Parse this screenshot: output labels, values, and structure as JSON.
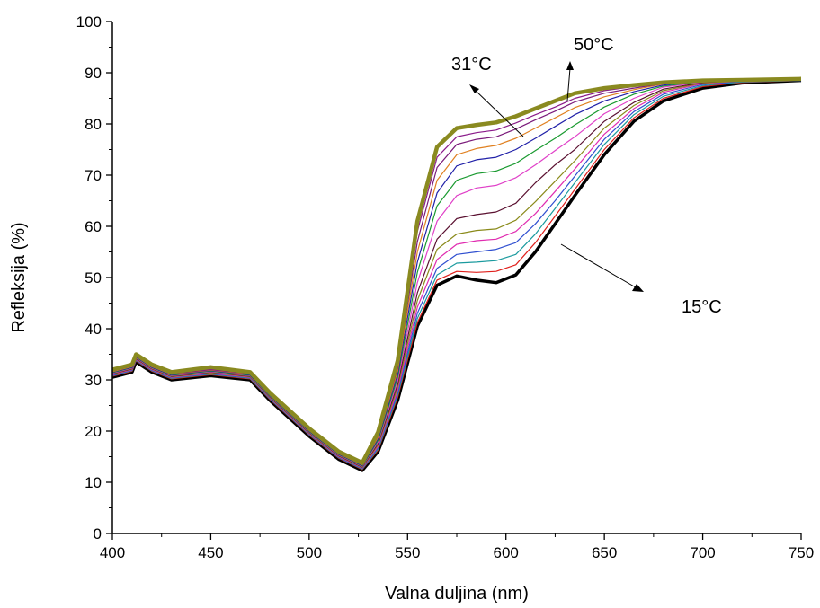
{
  "chart_data": {
    "type": "line",
    "title": "",
    "xlabel": "Valna duljina (nm)",
    "ylabel": "Refleksija (%)",
    "xlim": [
      400,
      750
    ],
    "ylim": [
      0,
      100
    ],
    "xticks": [
      400,
      450,
      500,
      550,
      600,
      650,
      700,
      750
    ],
    "yticks": [
      0,
      10,
      20,
      30,
      40,
      50,
      60,
      70,
      80,
      90,
      100
    ],
    "grid": false,
    "legend": "none",
    "x": [
      400,
      410,
      412,
      420,
      430,
      450,
      470,
      480,
      500,
      515,
      527,
      535,
      545,
      555,
      565,
      575,
      585,
      595,
      605,
      615,
      625,
      635,
      650,
      665,
      680,
      700,
      720,
      750
    ],
    "series": [
      {
        "color": "#000000",
        "values": [
          30.5,
          31.5,
          33.5,
          31.5,
          30.0,
          30.8,
          30.0,
          26.0,
          19.0,
          14.5,
          12.3,
          16.0,
          26.0,
          40.5,
          48.5,
          50.3,
          49.5,
          49.0,
          50.5,
          55.0,
          60.5,
          66.0,
          74.0,
          80.5,
          84.5,
          87.0,
          88.0,
          88.5
        ]
      },
      {
        "color": "#e0201c",
        "values": [
          30.7,
          31.7,
          33.7,
          31.7,
          30.2,
          31.0,
          30.2,
          26.2,
          19.2,
          14.7,
          12.5,
          16.3,
          26.6,
          41.2,
          49.5,
          51.2,
          51.0,
          51.2,
          52.5,
          56.8,
          62.0,
          67.2,
          75.0,
          81.2,
          85.0,
          87.3,
          88.1,
          88.5
        ]
      },
      {
        "color": "#1a9a9e",
        "values": [
          30.8,
          31.8,
          33.8,
          31.8,
          30.3,
          31.1,
          30.3,
          26.3,
          19.3,
          14.8,
          12.6,
          16.5,
          27.0,
          42.0,
          50.5,
          52.8,
          53.0,
          53.3,
          54.5,
          58.5,
          63.5,
          68.5,
          76.0,
          81.8,
          85.4,
          87.5,
          88.2,
          88.5
        ]
      },
      {
        "color": "#2f4fd0",
        "values": [
          30.9,
          31.9,
          33.9,
          31.9,
          30.4,
          31.2,
          30.4,
          26.4,
          19.4,
          14.9,
          12.7,
          16.8,
          27.5,
          43.0,
          51.8,
          54.5,
          55.0,
          55.5,
          56.8,
          60.5,
          65.0,
          69.8,
          77.0,
          82.4,
          85.8,
          87.7,
          88.3,
          88.5
        ]
      },
      {
        "color": "#e02cb0",
        "values": [
          31.0,
          32.0,
          34.0,
          32.0,
          30.5,
          31.3,
          30.5,
          26.5,
          19.5,
          15.0,
          12.8,
          17.0,
          28.0,
          44.2,
          53.5,
          56.5,
          57.2,
          57.5,
          59.0,
          62.5,
          66.8,
          71.2,
          78.0,
          83.0,
          86.2,
          87.9,
          88.4,
          88.6
        ]
      },
      {
        "color": "#8a8a1a",
        "values": [
          31.1,
          32.1,
          34.1,
          32.1,
          30.6,
          31.4,
          30.6,
          26.6,
          19.6,
          15.1,
          12.9,
          17.3,
          28.6,
          45.5,
          55.5,
          58.5,
          59.2,
          59.5,
          61.2,
          64.8,
          68.8,
          72.8,
          79.2,
          83.6,
          86.5,
          88.0,
          88.4,
          88.6
        ]
      },
      {
        "color": "#5a1030",
        "values": [
          31.2,
          32.2,
          34.2,
          32.2,
          30.7,
          31.5,
          30.7,
          26.7,
          19.7,
          15.2,
          13.0,
          17.6,
          29.2,
          47.0,
          57.5,
          61.5,
          62.3,
          62.8,
          64.5,
          68.5,
          72.0,
          75.0,
          80.5,
          84.2,
          86.8,
          88.1,
          88.5,
          88.6
        ]
      },
      {
        "color": "#e040c8",
        "values": [
          31.3,
          32.3,
          34.3,
          32.3,
          30.8,
          31.6,
          30.8,
          26.8,
          19.8,
          15.3,
          13.1,
          17.9,
          29.8,
          49.0,
          61.0,
          66.0,
          67.5,
          68.0,
          69.5,
          72.0,
          74.8,
          77.5,
          82.0,
          85.0,
          87.2,
          88.2,
          88.5,
          88.6
        ]
      },
      {
        "color": "#1a9a30",
        "values": [
          31.4,
          32.4,
          34.4,
          32.4,
          30.9,
          31.7,
          30.9,
          26.9,
          19.9,
          15.4,
          13.2,
          18.2,
          30.5,
          51.0,
          64.0,
          69.0,
          70.3,
          70.8,
          72.3,
          74.8,
          77.2,
          79.8,
          83.3,
          85.8,
          87.4,
          88.3,
          88.5,
          88.7
        ]
      },
      {
        "color": "#2020a8",
        "values": [
          31.5,
          32.5,
          34.5,
          32.5,
          31.0,
          31.8,
          31.0,
          27.0,
          20.0,
          15.5,
          13.3,
          18.5,
          31.2,
          53.0,
          66.5,
          71.8,
          73.0,
          73.5,
          75.0,
          77.2,
          79.5,
          81.8,
          84.5,
          86.3,
          87.6,
          88.4,
          88.6,
          88.7
        ]
      },
      {
        "color": "#e08020",
        "values": [
          31.6,
          32.6,
          34.6,
          32.6,
          31.1,
          31.9,
          31.1,
          27.1,
          20.1,
          15.6,
          13.4,
          18.8,
          31.8,
          55.0,
          69.0,
          74.0,
          75.2,
          75.8,
          77.2,
          79.2,
          81.2,
          83.2,
          85.3,
          86.7,
          87.8,
          88.4,
          88.6,
          88.7
        ]
      },
      {
        "color": "#7a1a7a",
        "values": [
          31.7,
          32.7,
          34.7,
          32.7,
          31.2,
          32.0,
          31.2,
          27.2,
          20.2,
          15.7,
          13.5,
          19.1,
          32.4,
          57.0,
          71.5,
          76.0,
          77.0,
          77.5,
          79.0,
          80.8,
          82.5,
          84.3,
          86.0,
          87.0,
          87.9,
          88.5,
          88.6,
          88.7
        ]
      },
      {
        "color": "#8a1a8a",
        "values": [
          31.8,
          32.8,
          34.8,
          32.8,
          31.3,
          32.1,
          31.3,
          27.3,
          20.3,
          15.8,
          13.6,
          19.4,
          33.0,
          59.0,
          73.5,
          77.5,
          78.3,
          78.8,
          80.2,
          81.8,
          83.3,
          85.0,
          86.5,
          87.3,
          88.0,
          88.5,
          88.6,
          88.7
        ]
      },
      {
        "color": "#8a8a20",
        "values": [
          32.0,
          33.0,
          35.0,
          33.0,
          31.5,
          32.5,
          31.5,
          27.5,
          20.5,
          16.0,
          13.8,
          19.8,
          33.8,
          61.0,
          75.5,
          79.2,
          79.8,
          80.3,
          81.5,
          83.0,
          84.5,
          86.0,
          87.0,
          87.6,
          88.1,
          88.5,
          88.6,
          88.8
        ]
      }
    ],
    "annotations": [
      {
        "text": "31°C"
      },
      {
        "text": "50°C"
      },
      {
        "text": "15°C"
      }
    ]
  }
}
